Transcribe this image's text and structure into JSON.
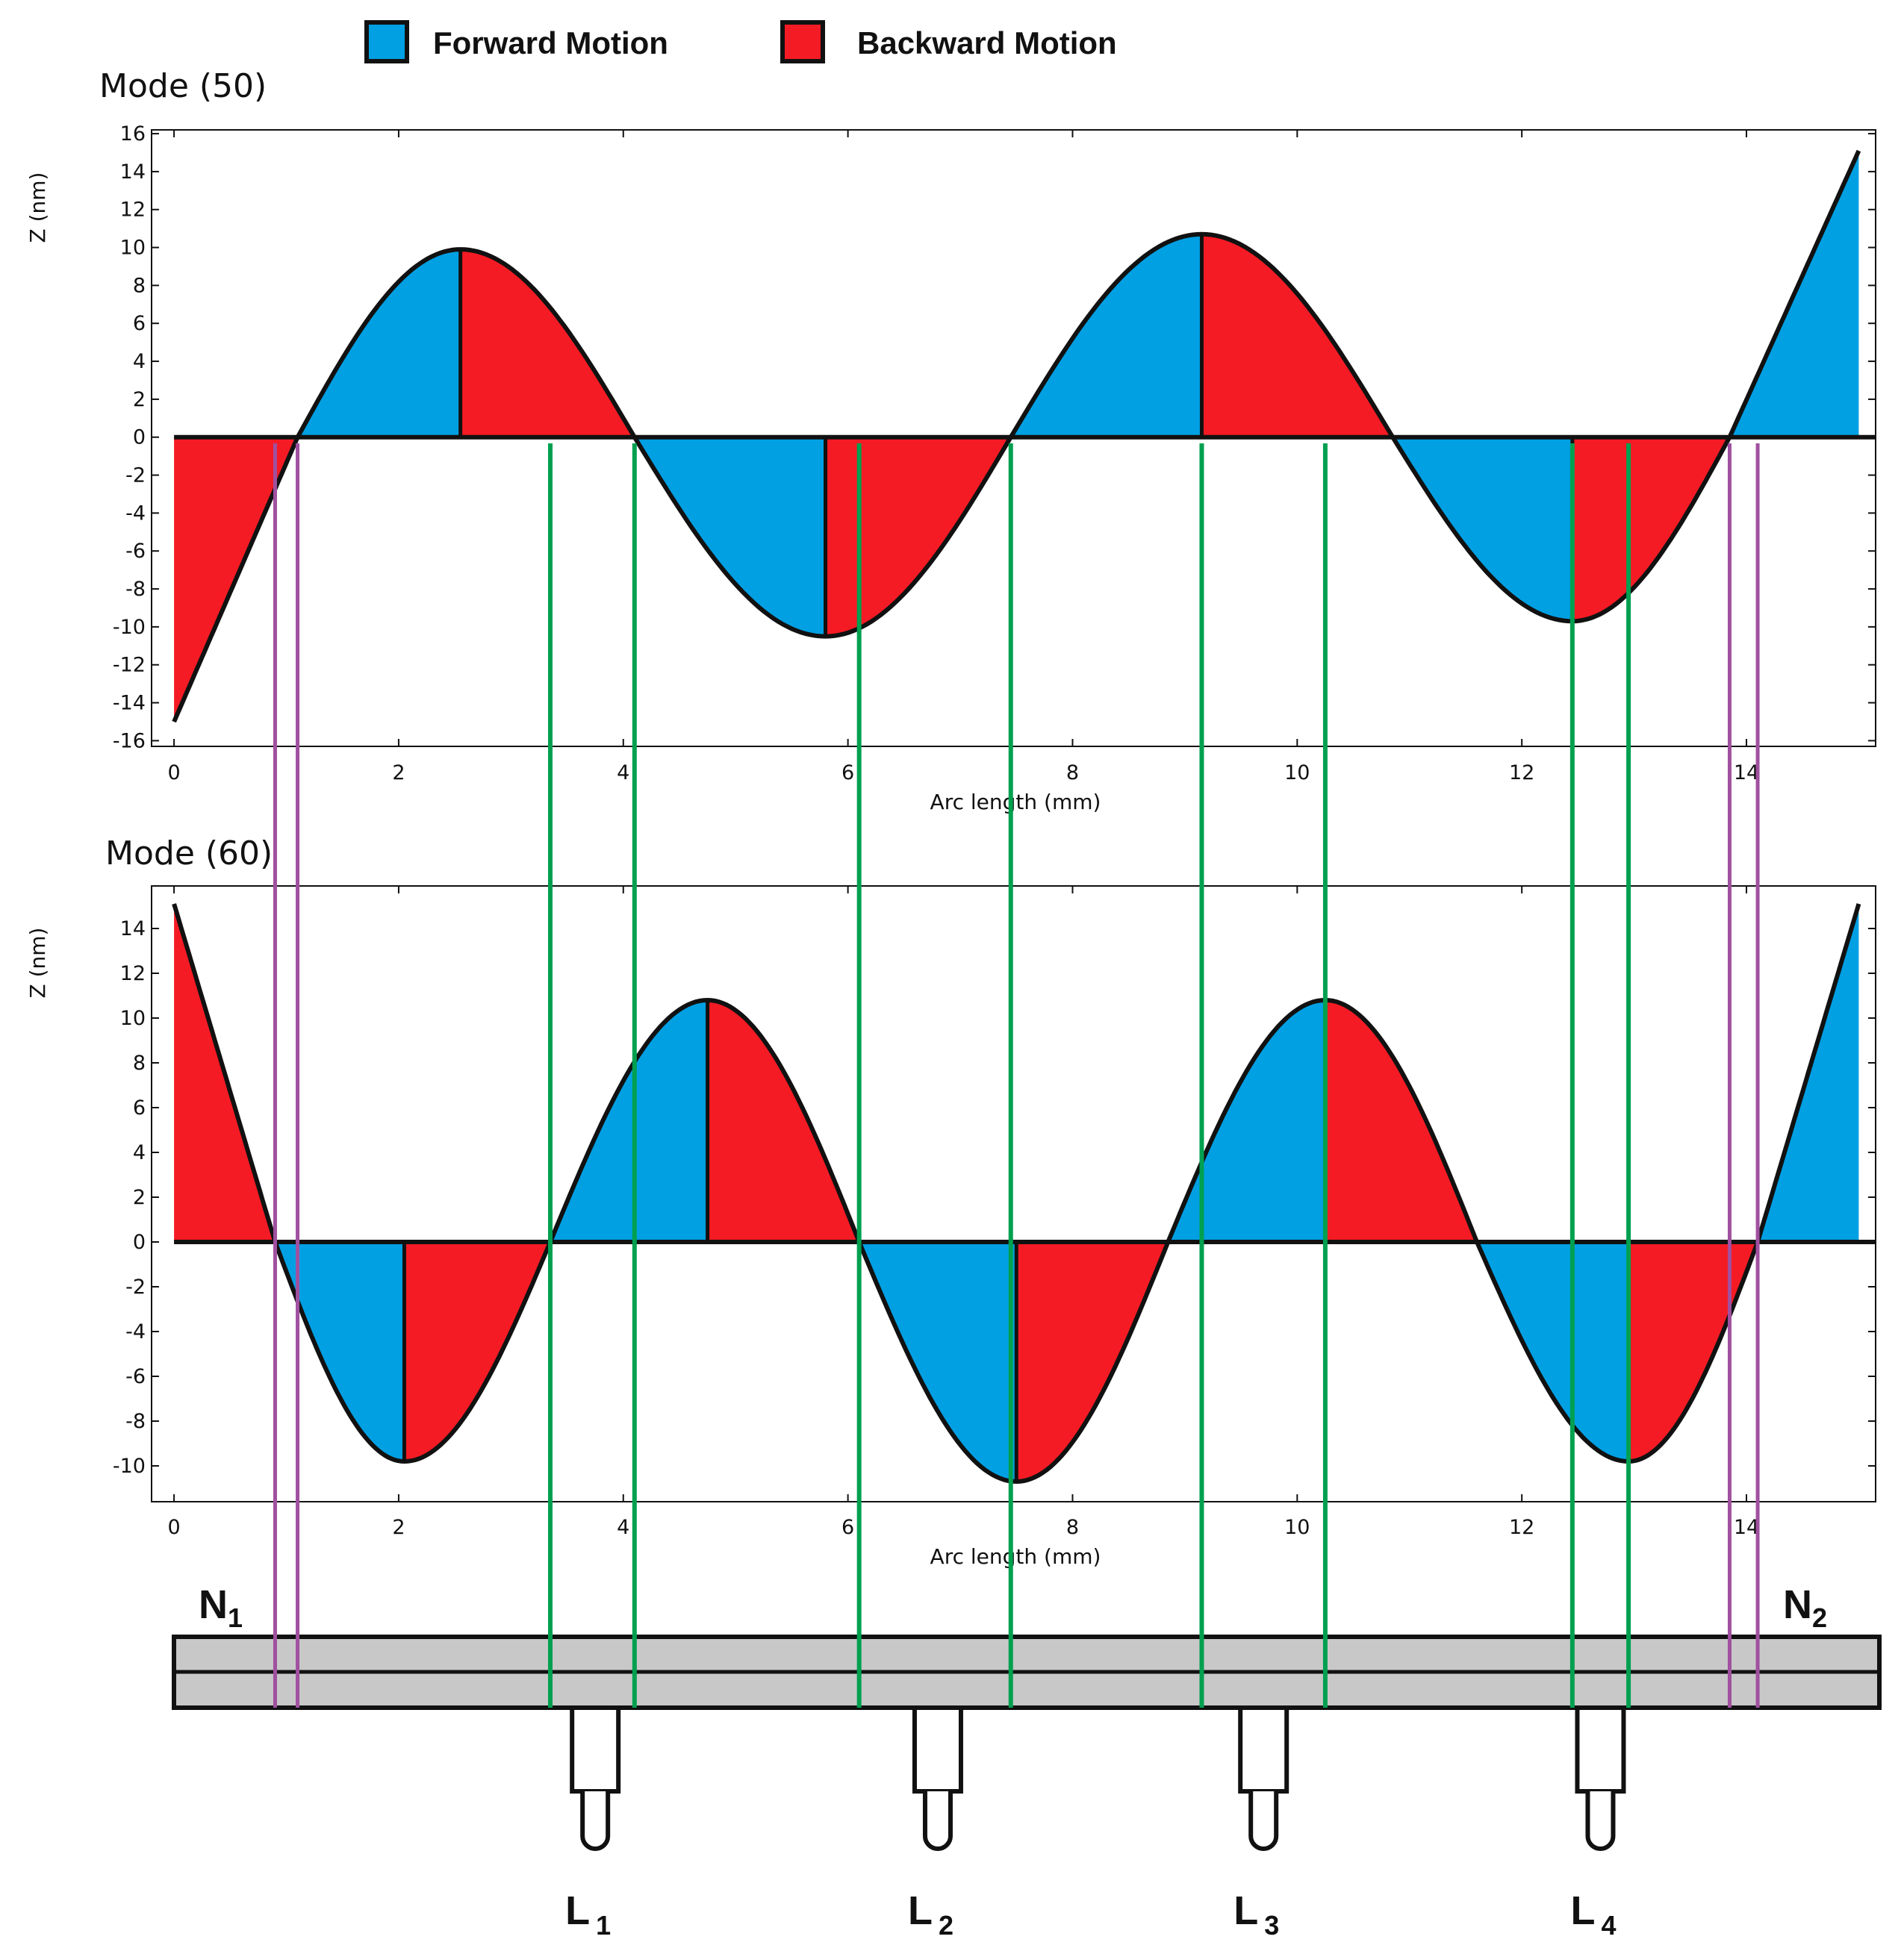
{
  "legend": {
    "forward": {
      "label": "Forward Motion",
      "color": "#00A0E3"
    },
    "backward": {
      "label": "Backward Motion",
      "color": "#F51B24"
    }
  },
  "chart_data": [
    {
      "type": "area",
      "title": "Mode (50)",
      "xlabel": "Arc length (mm)",
      "ylabel": "Z (nm)",
      "xlim": [
        -0.2,
        15.15
      ],
      "ylim": [
        -16.3,
        16.2
      ],
      "xticks": [
        0,
        2,
        4,
        6,
        8,
        10,
        12,
        14
      ],
      "yticks": [
        16,
        14,
        12,
        10,
        8,
        6,
        4,
        2,
        0,
        -2,
        -4,
        -6,
        -8,
        -10,
        -12,
        -14,
        -16
      ],
      "curve": [
        {
          "x": 0.0,
          "y": -15.0
        },
        {
          "x": 1.1,
          "y": 0.0
        },
        {
          "x": 2.55,
          "y": 9.9
        },
        {
          "x": 4.1,
          "y": 0.0
        },
        {
          "x": 5.8,
          "y": -10.5
        },
        {
          "x": 7.45,
          "y": 0.0
        },
        {
          "x": 9.15,
          "y": 10.7
        },
        {
          "x": 10.85,
          "y": 0.0
        },
        {
          "x": 12.45,
          "y": -9.7
        },
        {
          "x": 13.85,
          "y": 0.0
        },
        {
          "x": 15.0,
          "y": 15.1
        }
      ],
      "series": [
        {
          "name": "Forward Motion",
          "x_ranges": [
            [
              1.1,
              2.55
            ],
            [
              4.1,
              5.8
            ],
            [
              7.45,
              9.15
            ],
            [
              10.85,
              12.45
            ],
            [
              13.85,
              15.0
            ]
          ]
        },
        {
          "name": "Backward Motion",
          "x_ranges": [
            [
              0.0,
              1.1
            ],
            [
              2.55,
              4.1
            ],
            [
              5.8,
              7.45
            ],
            [
              9.15,
              10.85
            ],
            [
              12.45,
              13.85
            ]
          ]
        }
      ]
    },
    {
      "type": "area",
      "title": "Mode (60)",
      "xlabel": "Arc length (mm)",
      "ylabel": "Z (nm)",
      "xlim": [
        -0.2,
        15.15
      ],
      "ylim": [
        -11.6,
        15.9
      ],
      "xticks": [
        0,
        2,
        4,
        6,
        8,
        10,
        12,
        14
      ],
      "yticks": [
        14,
        12,
        10,
        8,
        6,
        4,
        2,
        0,
        -2,
        -4,
        -6,
        -8,
        -10
      ],
      "curve": [
        {
          "x": 0.0,
          "y": 15.1
        },
        {
          "x": 0.9,
          "y": 0.0
        },
        {
          "x": 2.05,
          "y": -9.8
        },
        {
          "x": 3.35,
          "y": 0.0
        },
        {
          "x": 4.75,
          "y": 10.8
        },
        {
          "x": 6.1,
          "y": 0.0
        },
        {
          "x": 7.5,
          "y": -10.7
        },
        {
          "x": 8.85,
          "y": 0.0
        },
        {
          "x": 10.25,
          "y": 10.8
        },
        {
          "x": 11.6,
          "y": 0.0
        },
        {
          "x": 12.95,
          "y": -9.8
        },
        {
          "x": 14.1,
          "y": 0.0
        },
        {
          "x": 15.0,
          "y": 15.1
        }
      ],
      "series": [
        {
          "name": "Forward Motion",
          "x_ranges": [
            [
              0.9,
              2.05
            ],
            [
              3.35,
              4.75
            ],
            [
              6.1,
              7.5
            ],
            [
              8.85,
              10.25
            ],
            [
              11.6,
              12.95
            ],
            [
              14.1,
              15.0
            ]
          ]
        },
        {
          "name": "Backward Motion",
          "x_ranges": [
            [
              0.0,
              0.9
            ],
            [
              2.05,
              3.35
            ],
            [
              4.75,
              6.1
            ],
            [
              7.5,
              8.85
            ],
            [
              10.25,
              11.6
            ],
            [
              12.95,
              14.1
            ]
          ]
        }
      ]
    }
  ],
  "guide_lines": {
    "magenta_color": "#A050A0",
    "green_color": "#00A050",
    "magenta_x": [
      0.9,
      1.1,
      13.85,
      14.1
    ],
    "green_x": [
      3.35,
      4.1,
      6.1,
      7.45,
      9.15,
      10.25,
      12.45,
      12.95
    ]
  },
  "beam": {
    "nodes": [
      {
        "main": "N",
        "sub": "1"
      },
      {
        "main": "N",
        "sub": "2"
      }
    ],
    "legs": [
      {
        "main": "L",
        "sub": "1",
        "x": 3.75
      },
      {
        "main": "L",
        "sub": "2",
        "x": 6.8
      },
      {
        "main": "L",
        "sub": "3",
        "x": 9.7
      },
      {
        "main": "L",
        "sub": "4",
        "x": 12.7
      }
    ]
  }
}
